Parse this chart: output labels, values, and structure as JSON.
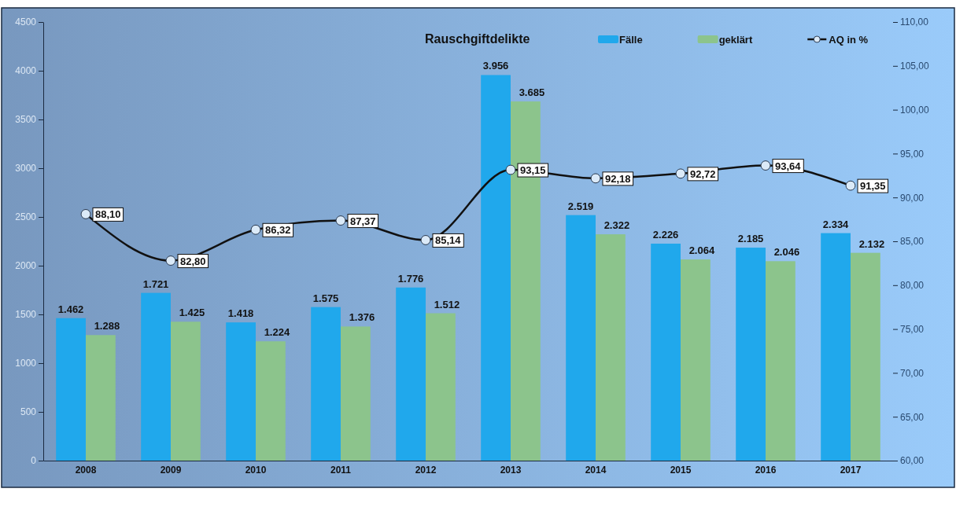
{
  "chart_data": {
    "type": "bar",
    "title": "Rauschgiftdelikte",
    "categories": [
      "2008",
      "2009",
      "2010",
      "2011",
      "2012",
      "2013",
      "2014",
      "2015",
      "2016",
      "2017"
    ],
    "series": [
      {
        "name": "Fälle",
        "color": "#20a8ec",
        "values": [
          1462,
          1721,
          1418,
          1575,
          1776,
          3956,
          2519,
          2226,
          2185,
          2334
        ],
        "value_labels": [
          "1.462",
          "1.721",
          "1.418",
          "1.575",
          "1.776",
          "3.956",
          "2.519",
          "2.226",
          "2.185",
          "2.334"
        ]
      },
      {
        "name": "geklärt",
        "color": "#8cc48c",
        "values": [
          1288,
          1425,
          1224,
          1376,
          1512,
          3685,
          2322,
          2064,
          2046,
          2132
        ],
        "value_labels": [
          "1.288",
          "1.425",
          "1.224",
          "1.376",
          "1.512",
          "3.685",
          "2.322",
          "2.064",
          "2.046",
          "2.132"
        ]
      },
      {
        "name": "AQ in %",
        "type": "line",
        "axis": "y2",
        "color": "#111111",
        "marker": "circle",
        "values": [
          88.1,
          82.8,
          86.32,
          87.37,
          85.14,
          93.15,
          92.18,
          92.72,
          93.64,
          91.35
        ],
        "value_labels": [
          "88,10",
          "82,80",
          "86,32",
          "87,37",
          "85,14",
          "93,15",
          "92,18",
          "92,72",
          "93,64",
          "91,35"
        ]
      }
    ],
    "ylim": [
      0,
      4500
    ],
    "yticks": [
      0,
      500,
      1000,
      1500,
      2000,
      2500,
      3000,
      3500,
      4000,
      4500
    ],
    "y2lim": [
      60,
      110
    ],
    "y2ticks": [
      {
        "value": 60,
        "label": "60,00"
      },
      {
        "value": 65,
        "label": "65,00"
      },
      {
        "value": 70,
        "label": "70,00"
      },
      {
        "value": 75,
        "label": "75,00"
      },
      {
        "value": 80,
        "label": "80,00"
      },
      {
        "value": 85,
        "label": "85,00"
      },
      {
        "value": 90,
        "label": "90,00"
      },
      {
        "value": 95,
        "label": "95,00"
      },
      {
        "value": 100,
        "label": "100,00"
      },
      {
        "value": 105,
        "label": "105,00"
      },
      {
        "value": 110,
        "label": "110,00"
      }
    ],
    "grid": false,
    "legend": "top right"
  }
}
